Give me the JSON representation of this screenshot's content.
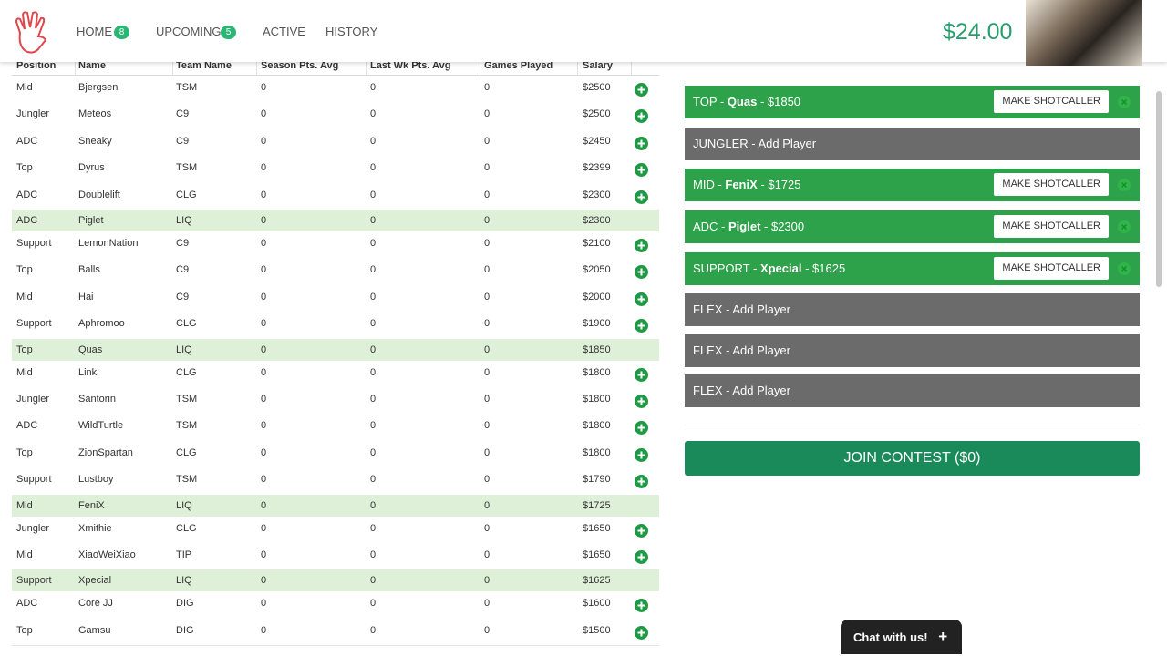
{
  "nav": {
    "items": [
      {
        "label": "HOME",
        "badge": "8"
      },
      {
        "label": "UPCOMING",
        "badge": "5"
      },
      {
        "label": "ACTIVE"
      },
      {
        "label": "HISTORY"
      }
    ],
    "balance": "$24.00"
  },
  "table": {
    "columns": [
      "Position",
      "Name",
      "Team Name",
      "Season Pts. Avg",
      "Last Wk Pts. Avg",
      "Games Played",
      "Salary"
    ],
    "rows": [
      {
        "cells": [
          "Mid",
          "Bjergsen",
          "TSM",
          0,
          0,
          0,
          "$2500"
        ]
      },
      {
        "cells": [
          "Jungler",
          "Meteos",
          "C9",
          0,
          0,
          0,
          "$2500"
        ]
      },
      {
        "cells": [
          "ADC",
          "Sneaky",
          "C9",
          0,
          0,
          0,
          "$2450"
        ]
      },
      {
        "cells": [
          "Top",
          "Dyrus",
          "TSM",
          0,
          0,
          0,
          "$2399"
        ]
      },
      {
        "cells": [
          "ADC",
          "Doublelift",
          "CLG",
          0,
          0,
          0,
          "$2300"
        ]
      },
      {
        "cells": [
          "ADC",
          "Piglet",
          "LIQ",
          0,
          0,
          0,
          "$2300"
        ],
        "selected": true
      },
      {
        "cells": [
          "Support",
          "LemonNation",
          "C9",
          0,
          0,
          0,
          "$2100"
        ]
      },
      {
        "cells": [
          "Top",
          "Balls",
          "C9",
          0,
          0,
          0,
          "$2050"
        ]
      },
      {
        "cells": [
          "Mid",
          "Hai",
          "C9",
          0,
          0,
          0,
          "$2000"
        ]
      },
      {
        "cells": [
          "Support",
          "Aphromoo",
          "CLG",
          0,
          0,
          0,
          "$1900"
        ]
      },
      {
        "cells": [
          "Top",
          "Quas",
          "LIQ",
          0,
          0,
          0,
          "$1850"
        ],
        "selected": true
      },
      {
        "cells": [
          "Mid",
          "Link",
          "CLG",
          0,
          0,
          0,
          "$1800"
        ]
      },
      {
        "cells": [
          "Jungler",
          "Santorin",
          "TSM",
          0,
          0,
          0,
          "$1800"
        ]
      },
      {
        "cells": [
          "ADC",
          "WildTurtle",
          "TSM",
          0,
          0,
          0,
          "$1800"
        ]
      },
      {
        "cells": [
          "Top",
          "ZionSpartan",
          "CLG",
          0,
          0,
          0,
          "$1800"
        ]
      },
      {
        "cells": [
          "Support",
          "Lustboy",
          "TSM",
          0,
          0,
          0,
          "$1790"
        ]
      },
      {
        "cells": [
          "Mid",
          "FeniX",
          "LIQ",
          0,
          0,
          0,
          "$1725"
        ],
        "selected": true
      },
      {
        "cells": [
          "Jungler",
          "Xmithie",
          "CLG",
          0,
          0,
          0,
          "$1650"
        ]
      },
      {
        "cells": [
          "Mid",
          "XiaoWeiXiao",
          "TIP",
          0,
          0,
          0,
          "$1650"
        ]
      },
      {
        "cells": [
          "Support",
          "Xpecial",
          "LIQ",
          0,
          0,
          0,
          "$1625"
        ],
        "selected": true
      },
      {
        "cells": [
          "ADC",
          "Core JJ",
          "DIG",
          0,
          0,
          0,
          "$1600"
        ]
      },
      {
        "cells": [
          "Top",
          "Gamsu",
          "DIG",
          0,
          0,
          0,
          "$1500"
        ]
      }
    ]
  },
  "team": {
    "slots": [
      {
        "prefix": "TOP - ",
        "player": "Quas",
        "suffix": " - $1850",
        "action": "MAKE SHOTCALLER"
      },
      {
        "text": "JUNGLER - Add Player"
      },
      {
        "prefix": "MID - ",
        "player": "FeniX",
        "suffix": " - $1725",
        "action": "MAKE SHOTCALLER"
      },
      {
        "prefix": "ADC - ",
        "player": "Piglet",
        "suffix": " - $2300",
        "action": "MAKE SHOTCALLER"
      },
      {
        "prefix": "SUPPORT - ",
        "player": "Xpecial",
        "suffix": " - $1625",
        "action": "MAKE SHOTCALLER"
      },
      {
        "text": "FLEX - Add Player"
      },
      {
        "text": "FLEX - Add Player"
      },
      {
        "text": "FLEX - Add Player"
      }
    ],
    "join": "JOIN CONTEST ($0)"
  },
  "chat": {
    "label": "Chat with us!",
    "icon": "+"
  }
}
